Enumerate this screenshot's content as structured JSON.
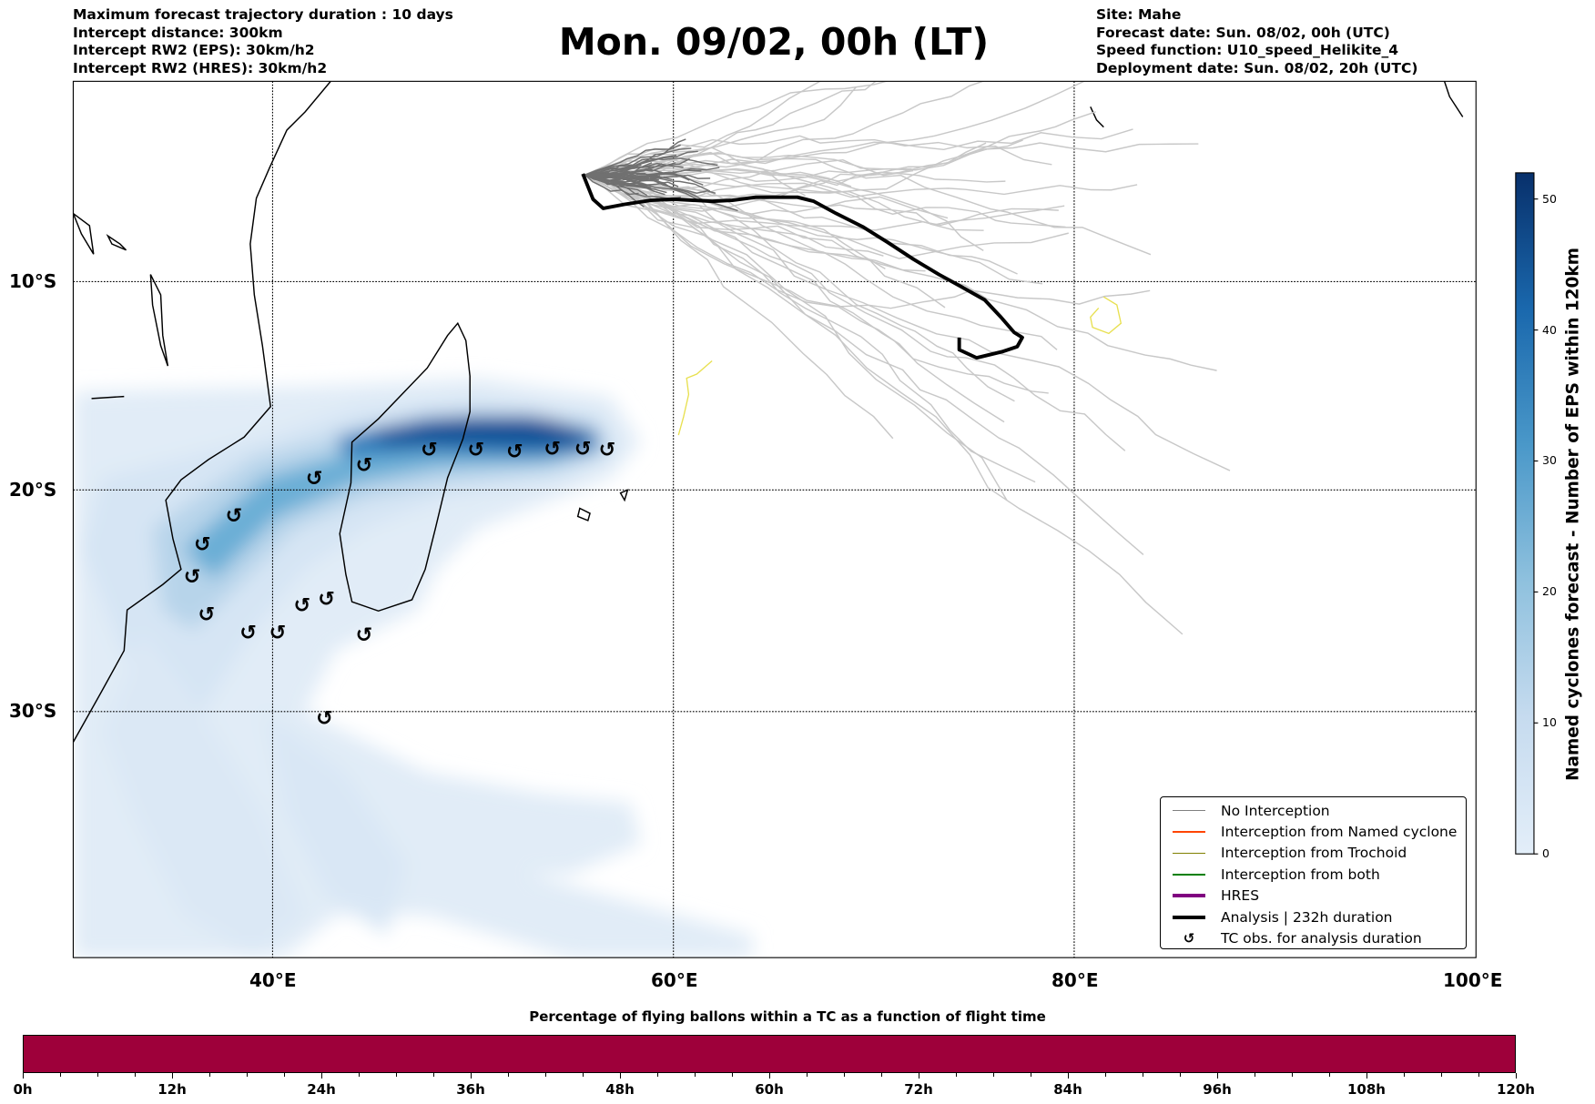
{
  "header": {
    "left": [
      "Maximum forecast trajectory duration : 10 days",
      "Intercept distance: 300km",
      "Intercept RW2 (EPS):  30km/h2",
      "Intercept RW2 (HRES): 30km/h2"
    ],
    "title": "Mon. 09/02, 00h (LT)",
    "right": [
      "Site: Mahe",
      "Forecast date: Sun. 08/02, 00h (UTC)",
      "Speed function: U10_speed_Helikite_4",
      "Deployment date: Sun. 08/02, 20h (UTC)"
    ]
  },
  "map": {
    "lon_labels": [
      "40°E",
      "60°E",
      "80°E",
      "100°E"
    ],
    "lat_labels": [
      "10°S",
      "20°S",
      "30°S"
    ],
    "lon_range": [
      30,
      100
    ],
    "analysis_duration_h": 232
  },
  "legend": [
    {
      "label": "No Interception",
      "color": "#808080",
      "style": "thin"
    },
    {
      "label": "Interception from Named cyclone",
      "color": "#ff4500",
      "style": "thin"
    },
    {
      "label": "Interception from Trochoid",
      "color": "#808000",
      "style": "thin"
    },
    {
      "label": "Interception from both",
      "color": "#008000",
      "style": "thin"
    },
    {
      "label": "HRES",
      "color": "#800080",
      "style": "thick"
    },
    {
      "label": "Analysis | 232h duration",
      "color": "#000000",
      "style": "thick"
    },
    {
      "label": "TC obs. for analysis duration",
      "color": "#000000",
      "style": "marker"
    }
  ],
  "colorbar": {
    "label": "Named cyclones forecast - Number of EPS within 120km",
    "ticks": [
      "0",
      "10",
      "20",
      "30",
      "40",
      "50"
    ],
    "max": 52,
    "colormap": "Blues"
  },
  "bottom_bar": {
    "title": "Percentage of flying ballons within a TC as a function of flight time",
    "ticks": [
      "0h",
      "12h",
      "24h",
      "36h",
      "48h",
      "60h",
      "72h",
      "84h",
      "96h",
      "108h",
      "120h"
    ],
    "fill_color": "#9e003a",
    "fill_fraction": 1.0
  },
  "tc_symbol": "↺"
}
